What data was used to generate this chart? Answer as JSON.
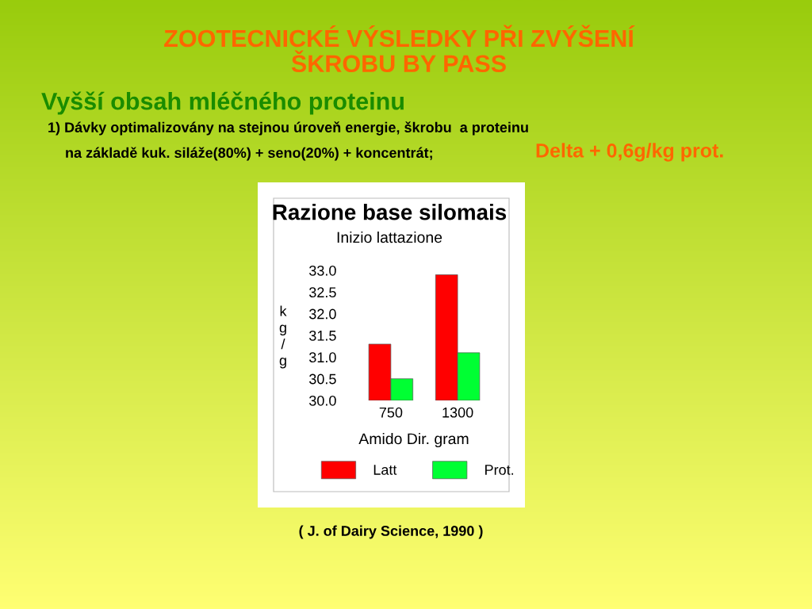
{
  "chart_data": {
    "type": "bar",
    "title": "Razione base silomais",
    "subtitle": "Inizio lattazione",
    "xlabel": "Amido Dir. gram",
    "ylabel": "kg/g",
    "categories": [
      "750",
      "1300"
    ],
    "series": [
      {
        "name": "Latt",
        "color": "#ff0000",
        "values": [
          31.3,
          32.9
        ]
      },
      {
        "name": "Prot.",
        "color": "#00ff33",
        "values": [
          30.5,
          31.1
        ]
      }
    ],
    "ylim": [
      30.0,
      33.0
    ],
    "yticks": [
      {
        "value": 30.0,
        "label": "30.0"
      },
      {
        "value": 30.5,
        "label": "30.5"
      },
      {
        "value": 31.0,
        "label": "31.0"
      },
      {
        "value": 31.5,
        "label": "31.5"
      },
      {
        "value": 32.0,
        "label": "32.0"
      },
      {
        "value": 32.5,
        "label": "32.5"
      },
      {
        "value": 33.0,
        "label": "33.0"
      }
    ],
    "grid": false,
    "legend": "bottom",
    "annotations": [
      "ZOOTECNICKÉ VÝSLEDKY PŘI ZVÝŠENÍ\nŠKROBU BY PASS",
      "Vyšší obsah mléčného proteinu",
      "1) Dávky optimalizovány na stejnou úroveň energie, škrobu  a proteinu",
      "na základě kuk. siláže(80%) + seno(20%) + koncentrát;",
      "Delta + 0,6g/kg prot.",
      "( J. of Dairy Science, 1990 )"
    ]
  }
}
